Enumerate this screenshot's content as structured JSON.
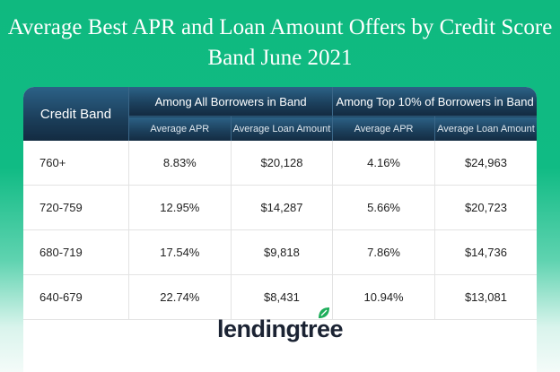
{
  "title": "Average Best APR and Loan Amount Offers by Credit Score Band June 2021",
  "table": {
    "band_header": "Credit Band",
    "group_headers": [
      "Among All Borrowers in Band",
      "Among Top 10% of Borrowers in Band"
    ],
    "sub_headers": [
      "Average APR",
      "Average Loan Amount",
      "Average APR",
      "Average Loan Amount"
    ],
    "rows": [
      [
        "760+",
        "8.83%",
        "$20,128",
        "4.16%",
        "$24,963"
      ],
      [
        "720-759",
        "12.95%",
        "$14,287",
        "5.66%",
        "$20,723"
      ],
      [
        "680-719",
        "17.54%",
        "$9,818",
        "7.86%",
        "$14,736"
      ],
      [
        "640-679",
        "22.74%",
        "$8,431",
        "10.94%",
        "$13,081"
      ]
    ]
  },
  "logo": {
    "text": "lendingtree",
    "icon": "leaf-icon",
    "color": "#1fae5b"
  }
}
